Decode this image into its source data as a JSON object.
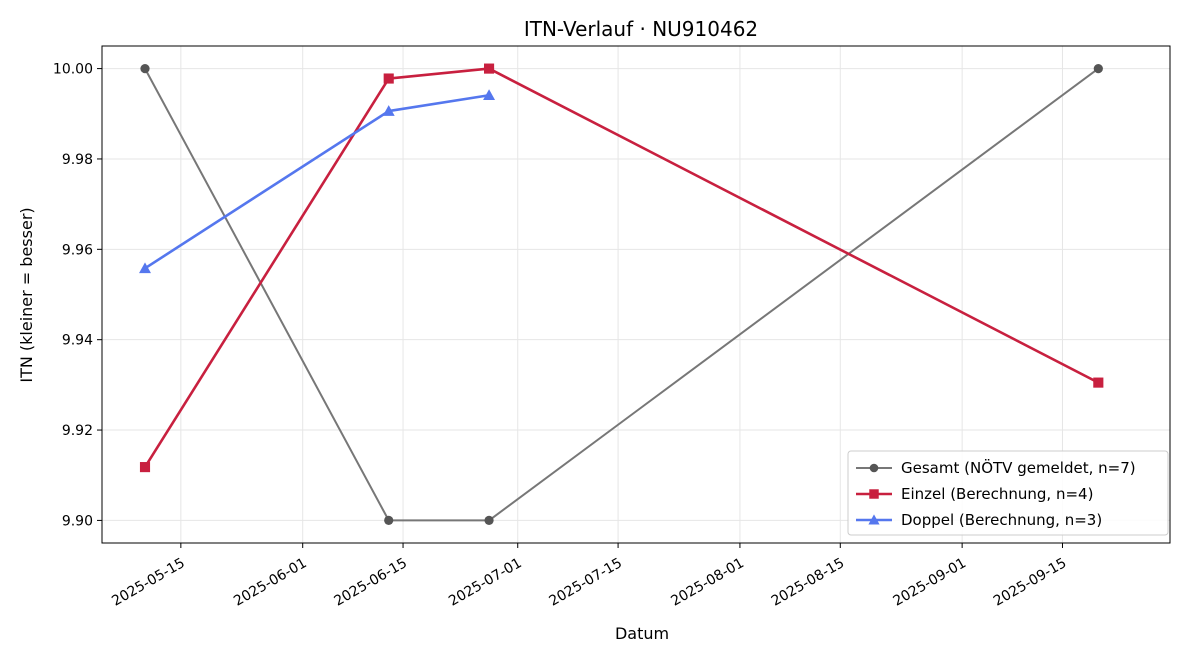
{
  "chart_data": {
    "type": "line",
    "title": "ITN-Verlauf · NU910462",
    "xlabel": "Datum",
    "ylabel": "ITN  (kleiner = besser)",
    "xlim": [
      "2025-05-04",
      "2025-09-30"
    ],
    "ylim": [
      9.895,
      10.005
    ],
    "grid": true,
    "legend_position": "lower-right",
    "x_ticks": [
      "2025-05-15",
      "2025-06-01",
      "2025-06-15",
      "2025-07-01",
      "2025-07-15",
      "2025-08-01",
      "2025-08-15",
      "2025-09-01",
      "2025-09-15"
    ],
    "y_ticks": [
      9.9,
      9.92,
      9.94,
      9.96,
      9.98,
      10.0
    ],
    "series": [
      {
        "name": "Gesamt (NÖTV gemeldet, n=7)",
        "color": "#777777",
        "marker_color": "#555555",
        "marker": "circle",
        "points": [
          {
            "x": "2025-05-10",
            "y": 10.0
          },
          {
            "x": "2025-06-13",
            "y": 9.9
          },
          {
            "x": "2025-06-27",
            "y": 9.9
          },
          {
            "x": "2025-09-20",
            "y": 10.0
          }
        ]
      },
      {
        "name": "Einzel (Berechnung, n=4)",
        "color": "#c8203f",
        "marker_color": "#c8203f",
        "marker": "square",
        "points": [
          {
            "x": "2025-05-10",
            "y": 9.9118
          },
          {
            "x": "2025-06-13",
            "y": 9.9978
          },
          {
            "x": "2025-06-27",
            "y": 10.0
          },
          {
            "x": "2025-09-20",
            "y": 9.9305
          }
        ]
      },
      {
        "name": "Doppel (Berechnung, n=3)",
        "color": "#5577ee",
        "marker_color": "#5577ee",
        "marker": "triangle",
        "points": [
          {
            "x": "2025-05-10",
            "y": 9.9558
          },
          {
            "x": "2025-06-13",
            "y": 9.9906
          },
          {
            "x": "2025-06-27",
            "y": 9.9941
          }
        ]
      }
    ]
  }
}
